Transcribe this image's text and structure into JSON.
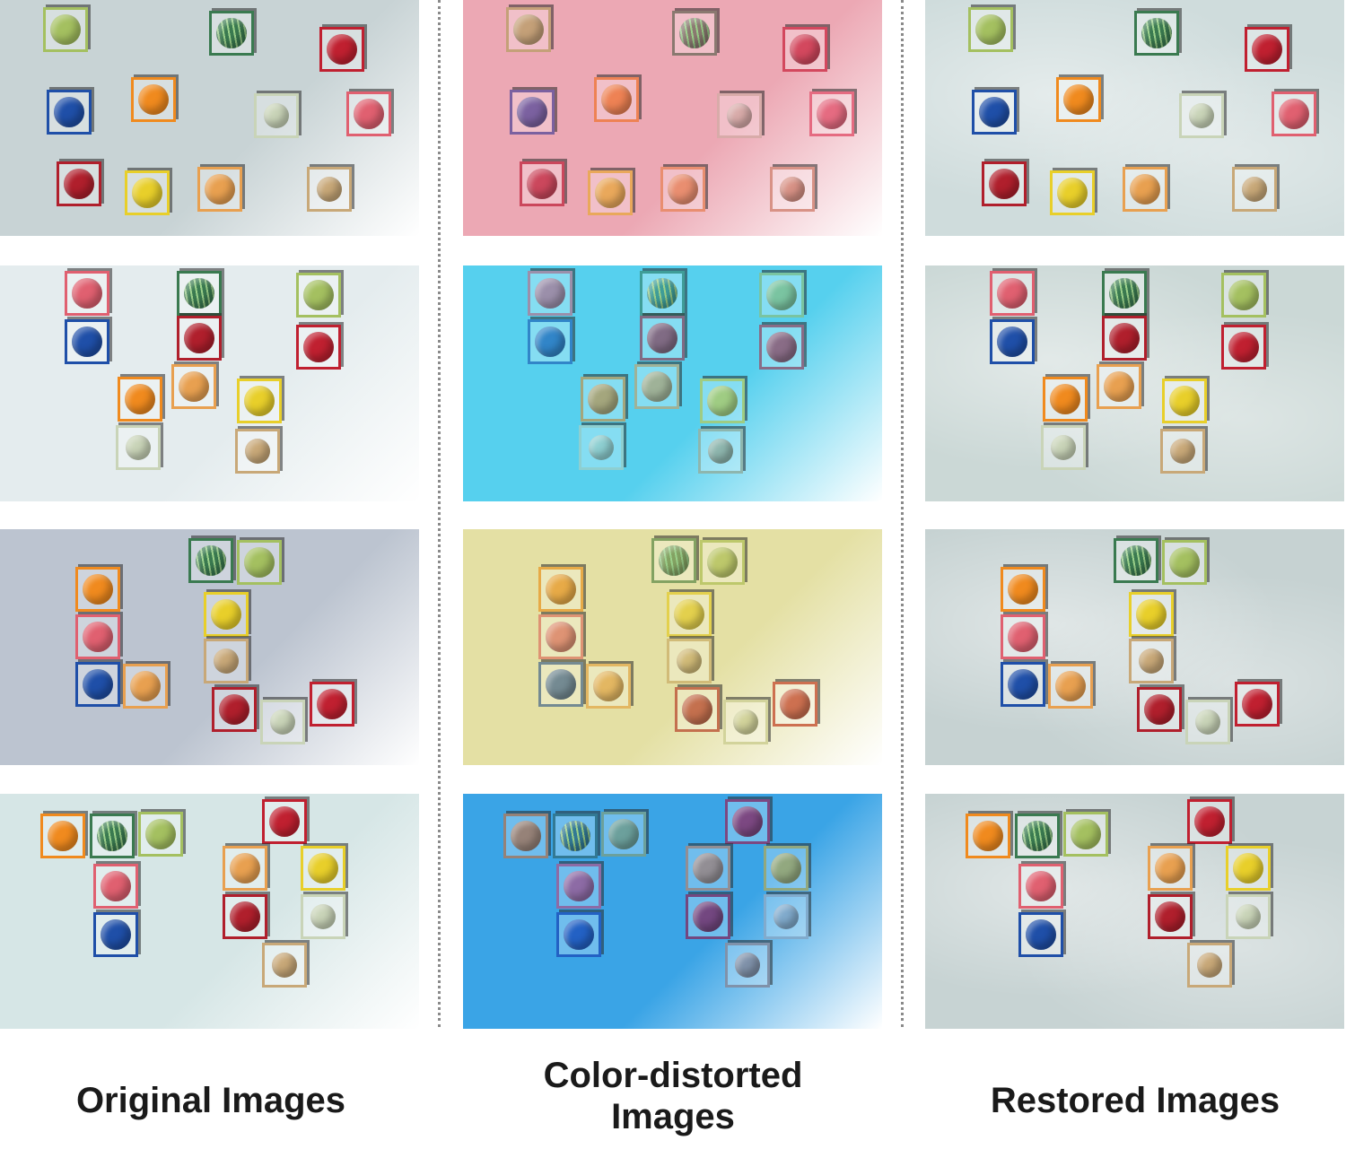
{
  "captions": {
    "original": "Original Images",
    "distorted_line1": "Color-distorted",
    "distorted_line2": "Images",
    "restored": "Restored Images"
  },
  "columns": [
    {
      "name": "original",
      "backgrounds": [
        "#c8d3d5",
        "#e4ecee",
        "#bcc4d0",
        "#d6e6e6"
      ]
    },
    {
      "name": "distorted",
      "backgrounds": [
        "#eca8b4",
        "#56d0ee",
        "#e4e0a4",
        "#3aa4e6"
      ]
    },
    {
      "name": "restored",
      "backgrounds": [
        "#cfdcdc",
        "#cbd8d6",
        "#c6d2d2",
        "#c7d3d3"
      ]
    }
  ],
  "fruit_colors": {
    "apple_green": "#a4c060",
    "watermelon": "#3a7a50",
    "apple_red": "#c02030",
    "blueberry": "#1f4fa8",
    "orange": "#f08a1e",
    "melon": "#c9d4b8",
    "peach": "#e06070",
    "pomegranate": "#b01f2c",
    "lemon": "#e8cf2a",
    "grapefruit": "#e8a050",
    "kiwi": "#c8a878"
  }
}
